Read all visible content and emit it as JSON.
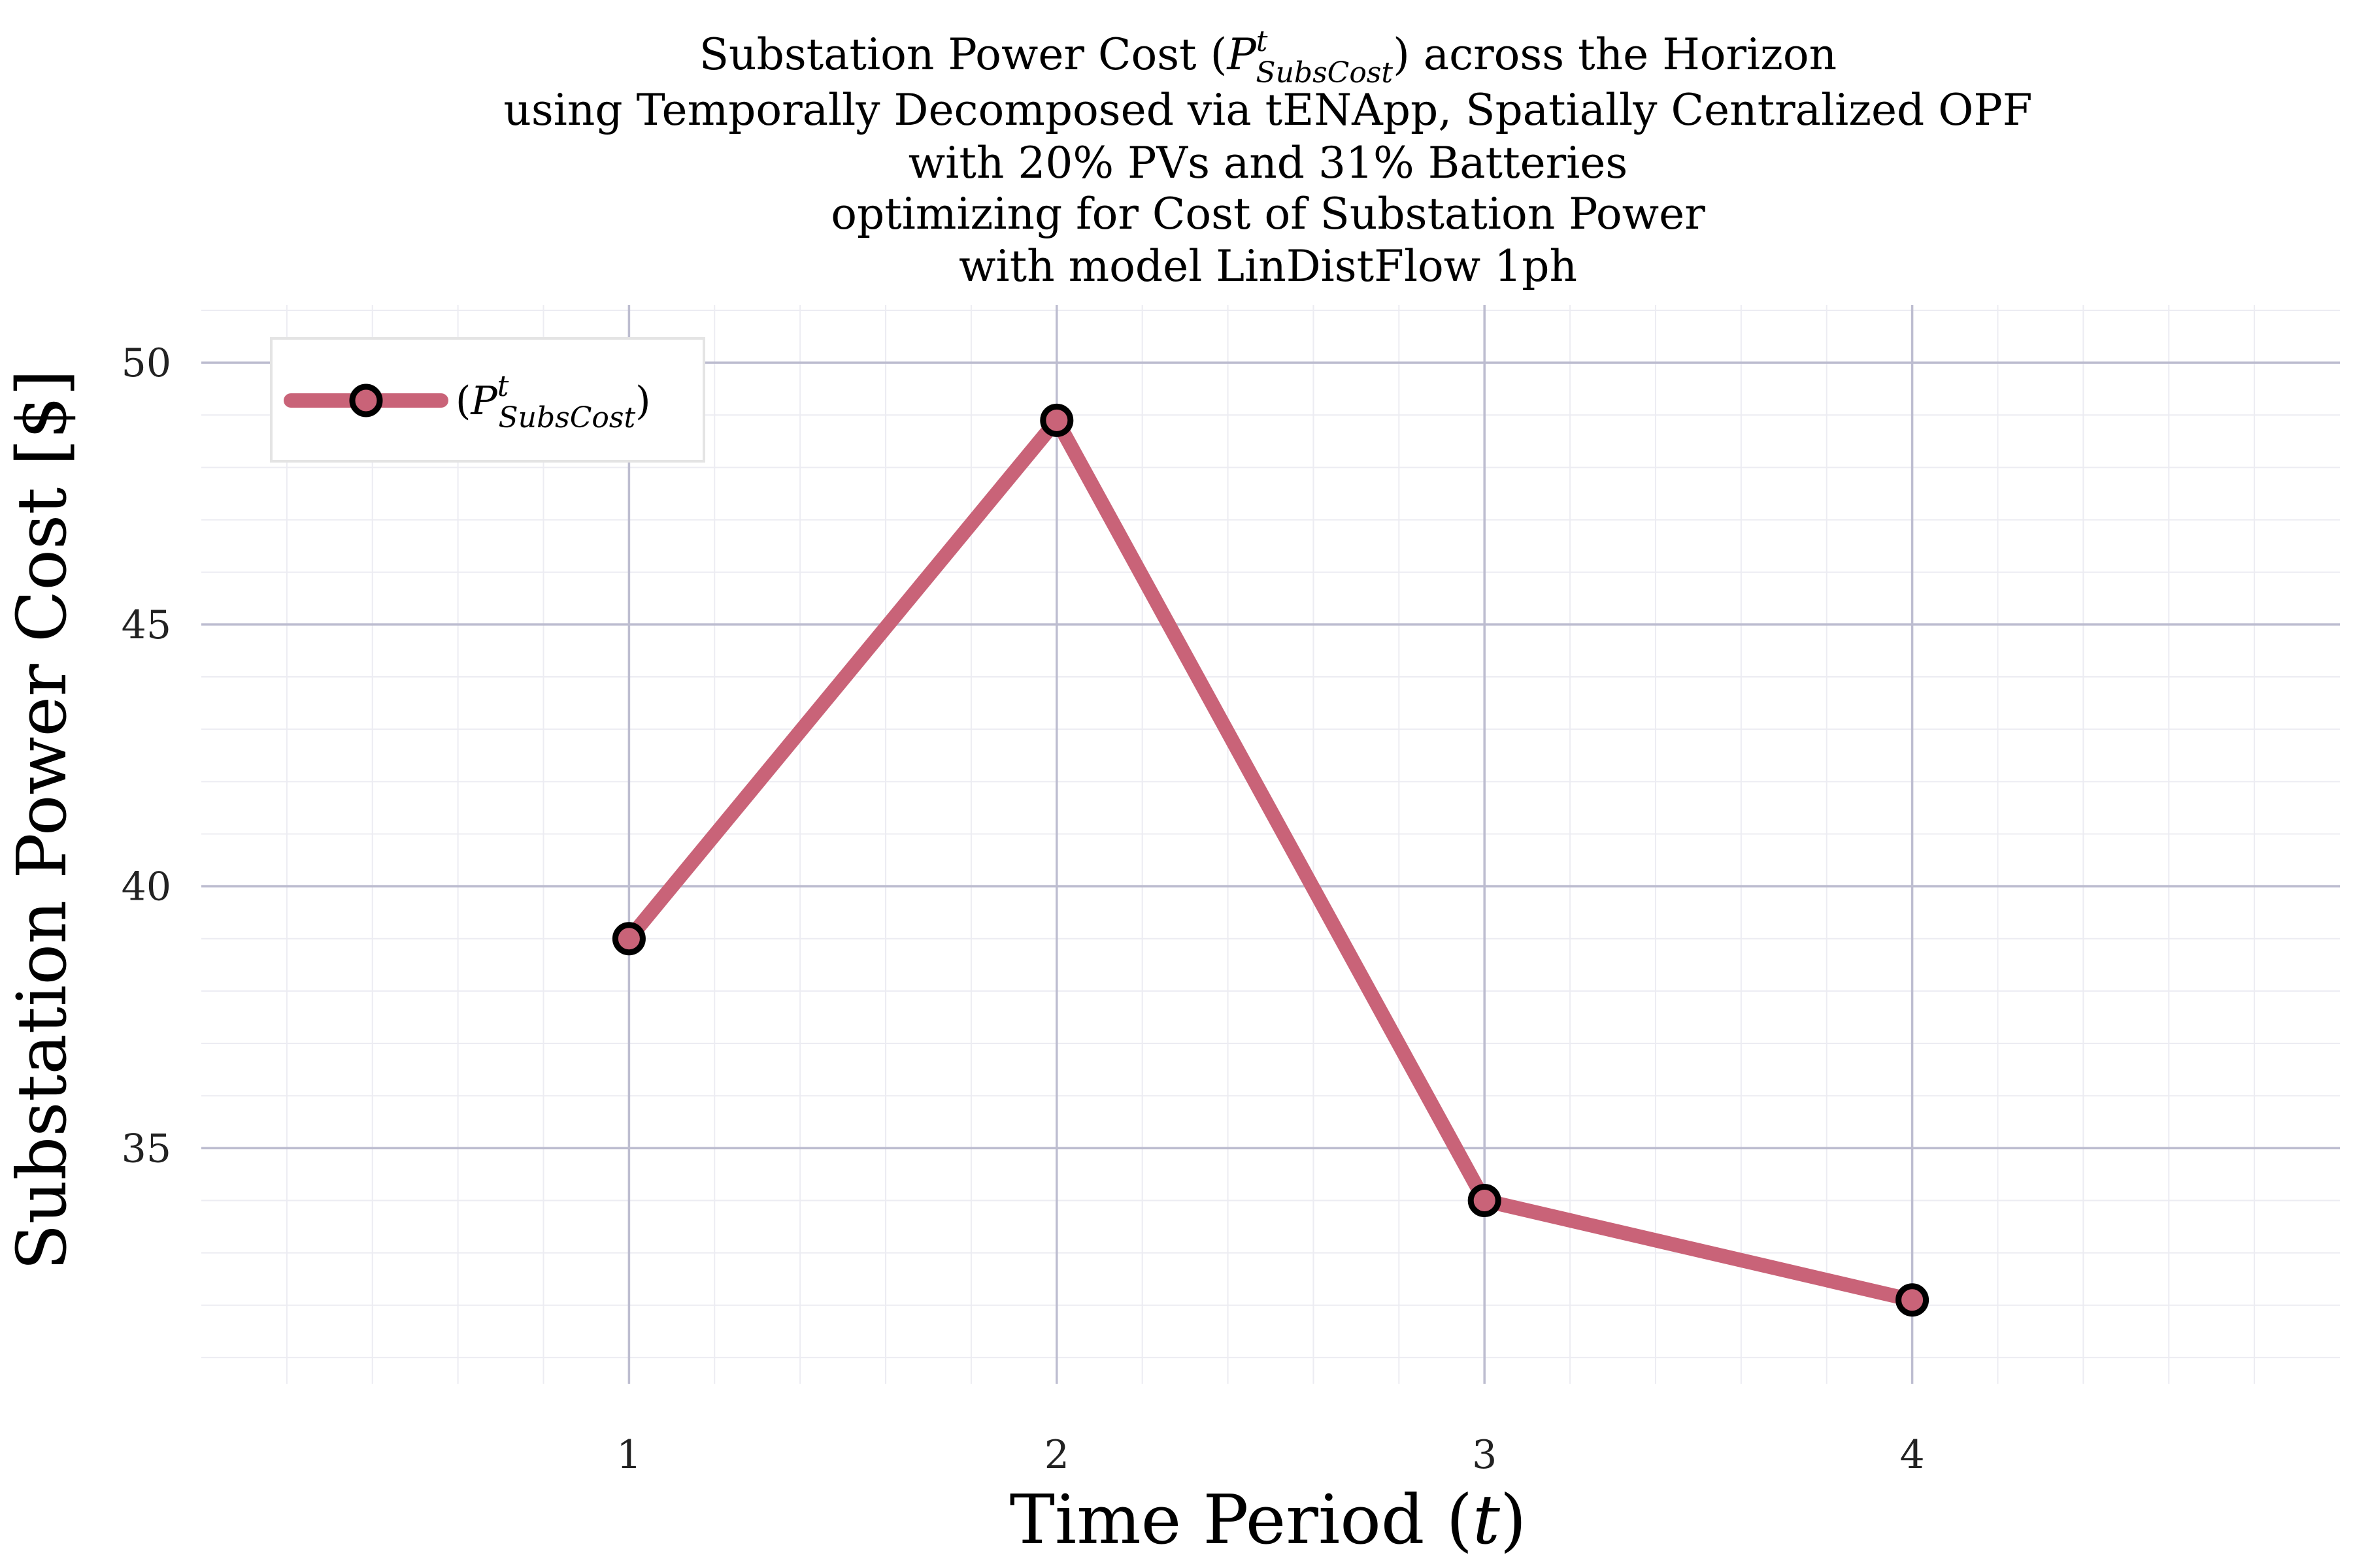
{
  "colors": {
    "series": "#c96378",
    "marker_edge": "#000000",
    "major_grid": "#bdbdd0",
    "minor_grid": "#ececf2",
    "legend_border": "#e4e4e4"
  },
  "title": {
    "line1_pre": "Substation Power Cost (",
    "line1_sym": "P",
    "line1_sup": "t",
    "line1_sub": "SubsCost",
    "line1_post": ") across the Horizon",
    "line2": "using Temporally Decomposed via tENApp, Spatially Centralized OPF",
    "line3": "with 20% PVs and 31% Batteries",
    "line4": "optimizing for Cost of Substation Power",
    "line5": "with model LinDistFlow 1ph"
  },
  "chart_data": {
    "type": "line",
    "x": [
      1,
      2,
      3,
      4
    ],
    "series": [
      {
        "name": "(P^t_SubsCost)",
        "values": [
          39.0,
          48.9,
          34.0,
          32.1
        ]
      }
    ],
    "xlabel": "Time Period (t)",
    "ylabel": "Substation Power Cost [$]",
    "xlim": [
      0.0,
      5.0
    ],
    "ylim": [
      30.5,
      51.1
    ],
    "xticks": [
      1,
      2,
      3,
      4
    ],
    "yticks": [
      35,
      40,
      45,
      50
    ],
    "grid": true,
    "minor_grid": true,
    "legend_position": "top-left",
    "markers": true
  },
  "axes": {
    "xlabel_pre": "Time Period (",
    "xlabel_var": "t",
    "xlabel_post": ")",
    "ylabel": "Substation Power Cost [$]"
  },
  "legend": {
    "pre": "(",
    "sym": "P",
    "sup": "t",
    "sub": "SubsCost",
    "post": ")"
  }
}
